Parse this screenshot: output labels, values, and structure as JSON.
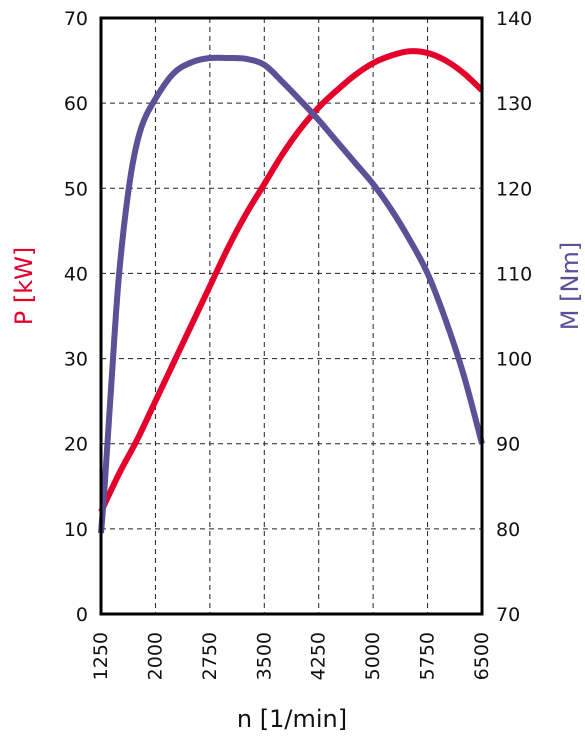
{
  "chart_data": {
    "type": "line",
    "xlabel": "n [1/min]",
    "ylabel_left": "P [kW]",
    "ylabel_right": "M [Nm]",
    "x_ticks": [
      "1250",
      "2000",
      "2750",
      "3500",
      "4250",
      "5000",
      "5750",
      "6500"
    ],
    "y_left_ticks": [
      "0",
      "10",
      "20",
      "30",
      "40",
      "50",
      "60",
      "70"
    ],
    "y_right_ticks": [
      "70",
      "80",
      "90",
      "100",
      "110",
      "120",
      "130",
      "140"
    ],
    "xlim": [
      1250,
      6500
    ],
    "ylim_left": [
      0,
      70
    ],
    "ylim_right": [
      70,
      140
    ],
    "grid": true,
    "colors": {
      "power": "#e4002b",
      "torque": "#5a5196",
      "axes": "#000000",
      "grid": "#222222"
    },
    "series": [
      {
        "axis": "left",
        "color": "#e4002b",
        "points": [
          [
            1250,
            12
          ],
          [
            1500,
            16.5
          ],
          [
            1750,
            20.5
          ],
          [
            2000,
            25
          ],
          [
            2250,
            29.5
          ],
          [
            2500,
            34
          ],
          [
            2750,
            38.5
          ],
          [
            3000,
            43
          ],
          [
            3250,
            47
          ],
          [
            3500,
            50.5
          ],
          [
            3750,
            54
          ],
          [
            4000,
            57
          ],
          [
            4250,
            59.5
          ],
          [
            4500,
            61.5
          ],
          [
            4750,
            63.3
          ],
          [
            5000,
            64.7
          ],
          [
            5250,
            65.6
          ],
          [
            5500,
            66.1
          ],
          [
            5750,
            65.9
          ],
          [
            6000,
            65
          ],
          [
            6250,
            63.5
          ],
          [
            6500,
            61.5
          ]
        ]
      },
      {
        "axis": "right",
        "color": "#5a5196",
        "points": [
          [
            1250,
            79.5
          ],
          [
            1300,
            85
          ],
          [
            1400,
            98
          ],
          [
            1500,
            110
          ],
          [
            1650,
            121
          ],
          [
            1800,
            127
          ],
          [
            2000,
            130.5
          ],
          [
            2250,
            133.5
          ],
          [
            2500,
            134.8
          ],
          [
            2750,
            135.3
          ],
          [
            3000,
            135.3
          ],
          [
            3250,
            135.2
          ],
          [
            3500,
            134.5
          ],
          [
            3750,
            132.5
          ],
          [
            4000,
            130.3
          ],
          [
            4250,
            128
          ],
          [
            4500,
            125.5
          ],
          [
            4750,
            123
          ],
          [
            5000,
            120.5
          ],
          [
            5250,
            117.5
          ],
          [
            5500,
            114
          ],
          [
            5750,
            110
          ],
          [
            6000,
            104.5
          ],
          [
            6250,
            98
          ],
          [
            6500,
            90
          ]
        ]
      }
    ]
  }
}
